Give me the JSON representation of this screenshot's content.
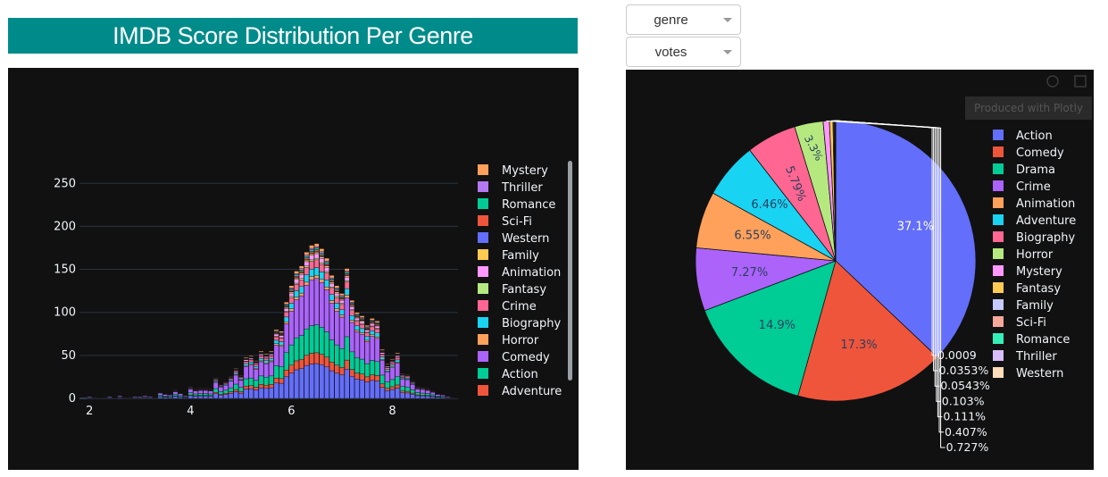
{
  "page_title": "IMDB Score Distribution Per Genre",
  "controls": {
    "genre_dropdown": {
      "selected": "genre"
    },
    "votes_dropdown": {
      "selected": "votes"
    }
  },
  "modebar": {
    "tooltip": "Produced with Plotly"
  },
  "colors": {
    "title_bg": "#008b8b",
    "panel_bg": "#111111"
  },
  "chart_data": [
    {
      "type": "bar",
      "mode": "stack",
      "title": "",
      "xlabel": "",
      "ylabel": "",
      "xlim": [
        1.8,
        9.3
      ],
      "ylim": [
        0,
        270
      ],
      "xticks": [
        2,
        4,
        6,
        8
      ],
      "yticks": [
        0,
        50,
        100,
        150,
        200,
        250
      ],
      "grid": true,
      "legend_position": "right",
      "x": [
        2.0,
        2.1,
        2.2,
        2.3,
        2.4,
        2.5,
        2.6,
        2.7,
        2.8,
        2.9,
        3.0,
        3.1,
        3.2,
        3.3,
        3.4,
        3.5,
        3.6,
        3.7,
        3.8,
        3.9,
        4.0,
        4.1,
        4.2,
        4.3,
        4.4,
        4.5,
        4.6,
        4.7,
        4.8,
        4.9,
        5.0,
        5.1,
        5.2,
        5.3,
        5.4,
        5.5,
        5.6,
        5.7,
        5.8,
        5.9,
        6.0,
        6.1,
        6.2,
        6.3,
        6.4,
        6.5,
        6.6,
        6.7,
        6.8,
        6.9,
        7.0,
        7.1,
        7.2,
        7.3,
        7.4,
        7.5,
        7.6,
        7.7,
        7.8,
        7.9,
        8.0,
        8.1,
        8.2,
        8.3,
        8.4,
        8.5,
        8.6,
        8.7,
        8.8,
        8.9,
        9.0,
        9.1,
        9.2,
        9.3
      ],
      "totals": [
        3,
        2,
        1,
        2,
        3,
        1,
        4,
        2,
        2,
        3,
        3,
        4,
        3,
        2,
        8,
        6,
        5,
        10,
        7,
        4,
        14,
        11,
        12,
        12,
        11,
        24,
        17,
        20,
        26,
        35,
        27,
        48,
        50,
        44,
        55,
        52,
        55,
        80,
        78,
        112,
        131,
        148,
        154,
        170,
        178,
        180,
        174,
        163,
        143,
        131,
        122,
        151,
        114,
        100,
        96,
        85,
        93,
        90,
        57,
        40,
        46,
        53,
        29,
        28,
        21,
        14,
        13,
        12,
        9,
        6,
        5,
        3,
        2,
        1
      ],
      "series": [
        {
          "name": "Mystery",
          "color": "#FFA15A",
          "share": 0.02
        },
        {
          "name": "Thriller",
          "color": "#B279F2",
          "share": 0.01
        },
        {
          "name": "Romance",
          "color": "#00CC96",
          "share": 0.01
        },
        {
          "name": "Sci-Fi",
          "color": "#EF553B",
          "share": 0.01
        },
        {
          "name": "Western",
          "color": "#636EFA",
          "share": 0.005
        },
        {
          "name": "Family",
          "color": "#FECB52",
          "share": 0.01
        },
        {
          "name": "Animation",
          "color": "#FF97FF",
          "share": 0.03
        },
        {
          "name": "Fantasy",
          "color": "#B6E880",
          "share": 0.01
        },
        {
          "name": "Crime",
          "color": "#FF6692",
          "share": 0.05
        },
        {
          "name": "Biography",
          "color": "#19D3F3",
          "share": 0.05
        },
        {
          "name": "Horror",
          "color": "#FFA15A",
          "share": 0.02
        },
        {
          "name": "Comedy",
          "color": "#AB63FA",
          "share": 0.3
        },
        {
          "name": "Action",
          "color": "#00CC96",
          "share": 0.18
        },
        {
          "name": "Adventure",
          "color": "#EF553B",
          "share": 0.07
        },
        {
          "name": "Drama",
          "color": "#636EFA",
          "share": 0.225
        }
      ],
      "legend_visible": [
        "Mystery",
        "Thriller",
        "Romance",
        "Sci-Fi",
        "Western",
        "Family",
        "Animation",
        "Fantasy",
        "Crime",
        "Biography",
        "Horror",
        "Comedy",
        "Action",
        "Adventure"
      ]
    },
    {
      "type": "pie",
      "title": "",
      "legend_position": "right",
      "slices": [
        {
          "label": "Action",
          "value": 37.1,
          "color": "#636EFA",
          "text": "37.1%"
        },
        {
          "label": "Comedy",
          "value": 17.3,
          "color": "#EF553B",
          "text": "17.3%"
        },
        {
          "label": "Drama",
          "value": 14.9,
          "color": "#00CC96",
          "text": "14.9%"
        },
        {
          "label": "Crime",
          "value": 7.27,
          "color": "#AB63FA",
          "text": "7.27%"
        },
        {
          "label": "Animation",
          "value": 6.55,
          "color": "#FFA15A",
          "text": "6.55%"
        },
        {
          "label": "Adventure",
          "value": 6.46,
          "color": "#19D3F3",
          "text": "6.46%"
        },
        {
          "label": "Biography",
          "value": 5.79,
          "color": "#FF6692",
          "text": "5.79%"
        },
        {
          "label": "Horror",
          "value": 3.3,
          "color": "#B6E880",
          "text": "3.3%"
        },
        {
          "label": "Mystery",
          "value": 0.727,
          "color": "#FF97FF",
          "text": "0.727%"
        },
        {
          "label": "Fantasy",
          "value": 0.407,
          "color": "#FECB52",
          "text": "0.407%"
        },
        {
          "label": "Family",
          "value": 0.111,
          "color": "#C6CAFD",
          "text": "0.111%"
        },
        {
          "label": "Sci-Fi",
          "value": 0.103,
          "color": "#F7A799",
          "text": "0.103%"
        },
        {
          "label": "Romance",
          "value": 0.0543,
          "color": "#33F0B8",
          "text": "0.0543%"
        },
        {
          "label": "Thriller",
          "value": 0.0353,
          "color": "#D9BEFC",
          "text": "0.0353%"
        },
        {
          "label": "Western",
          "value": 0.0009,
          "color": "#FFDDBB",
          "text": "0.0009"
        }
      ]
    }
  ]
}
